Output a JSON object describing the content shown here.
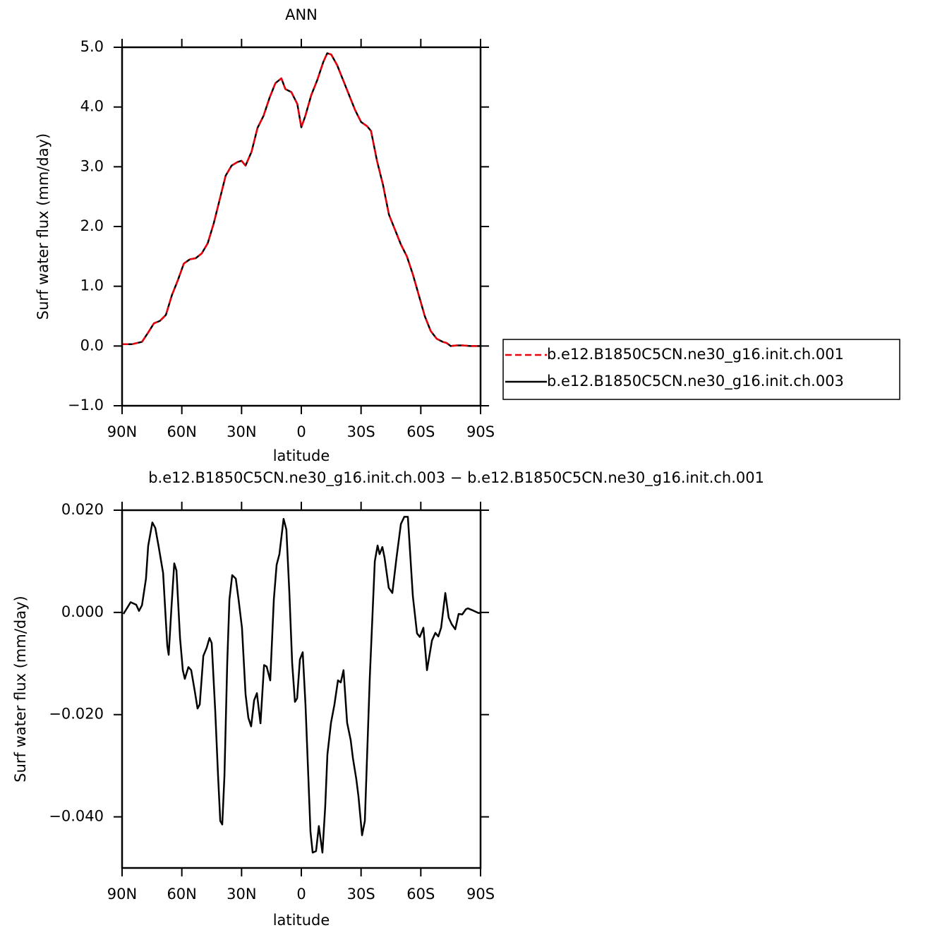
{
  "chart_data": [
    {
      "type": "line",
      "title": "ANN",
      "xlabel": "latitude",
      "ylabel": "Surf water flux (mm/day)",
      "xlim": [
        90,
        -90
      ],
      "ylim": [
        -1.0,
        5.0
      ],
      "xticks": [
        {
          "value": 90,
          "label": "90N"
        },
        {
          "value": 60,
          "label": "60N"
        },
        {
          "value": 30,
          "label": "30N"
        },
        0,
        {
          "value": -30,
          "label": "30S"
        },
        {
          "value": -60,
          "label": "60S"
        },
        {
          "value": -90,
          "label": "90S"
        }
      ],
      "yticks": [
        {
          "value": -1.0,
          "label": "−1.0"
        },
        {
          "value": 0.0,
          "label": "0.0"
        },
        {
          "value": 1.0,
          "label": "1.0"
        },
        {
          "value": 2.0,
          "label": "2.0"
        },
        {
          "value": 3.0,
          "label": "3.0"
        },
        {
          "value": 4.0,
          "label": "4.0"
        },
        {
          "value": 5.0,
          "label": "5.0"
        }
      ],
      "legend": "right",
      "x": [
        90,
        85,
        80,
        77,
        74,
        71,
        68,
        65,
        62,
        59,
        56,
        53,
        50,
        47,
        44,
        41,
        38,
        35,
        32,
        30,
        28,
        25,
        22,
        19,
        16,
        13,
        10,
        8,
        5,
        2,
        0,
        -2,
        -5,
        -8,
        -11,
        -13,
        -15,
        -18,
        -21,
        -24,
        -27,
        -30,
        -33,
        -35,
        -38,
        -41,
        -44,
        -47,
        -50,
        -53,
        -56,
        -59,
        -62,
        -65,
        -68,
        -71,
        -73,
        -75,
        -78,
        -81,
        -85,
        -90
      ],
      "series": [
        {
          "name": "b.e12.B1850C5CN.ne30_g16.init.ch.001",
          "color": "#e8000b",
          "dash": "dashed",
          "values": [
            0.03,
            0.03,
            0.07,
            0.22,
            0.38,
            0.42,
            0.52,
            0.85,
            1.1,
            1.38,
            1.45,
            1.47,
            1.55,
            1.72,
            2.05,
            2.45,
            2.85,
            3.02,
            3.08,
            3.1,
            3.02,
            3.25,
            3.65,
            3.85,
            4.15,
            4.4,
            4.48,
            4.3,
            4.25,
            4.05,
            3.66,
            3.85,
            4.2,
            4.45,
            4.75,
            4.9,
            4.88,
            4.7,
            4.45,
            4.2,
            3.95,
            3.75,
            3.68,
            3.6,
            3.1,
            2.7,
            2.2,
            1.95,
            1.7,
            1.5,
            1.2,
            0.85,
            0.5,
            0.25,
            0.12,
            0.07,
            0.05,
            0.0,
            0.01,
            0.01,
            0.0,
            0.0
          ]
        },
        {
          "name": "b.e12.B1850C5CN.ne30_g16.init.ch.003",
          "color": "#000000",
          "dash": "solid",
          "values": [
            0.03,
            0.03,
            0.07,
            0.22,
            0.38,
            0.42,
            0.52,
            0.85,
            1.1,
            1.38,
            1.45,
            1.47,
            1.55,
            1.72,
            2.05,
            2.45,
            2.85,
            3.02,
            3.08,
            3.1,
            3.02,
            3.25,
            3.65,
            3.85,
            4.15,
            4.4,
            4.48,
            4.3,
            4.25,
            4.05,
            3.66,
            3.85,
            4.2,
            4.45,
            4.75,
            4.9,
            4.88,
            4.7,
            4.45,
            4.2,
            3.95,
            3.75,
            3.68,
            3.6,
            3.1,
            2.7,
            2.2,
            1.95,
            1.7,
            1.5,
            1.2,
            0.85,
            0.5,
            0.25,
            0.12,
            0.07,
            0.05,
            0.0,
            0.01,
            0.01,
            0.0,
            0.0
          ]
        }
      ]
    },
    {
      "type": "line",
      "title": "b.e12.B1850C5CN.ne30_g16.init.ch.003 − b.e12.B1850C5CN.ne30_g16.init.ch.001",
      "xlabel": "latitude",
      "ylabel": "Surf water flux (mm/day)",
      "xlim": [
        90,
        -90
      ],
      "ylim": [
        -0.05,
        0.02
      ],
      "xticks": [
        {
          "value": 90,
          "label": "90N"
        },
        {
          "value": 60,
          "label": "60N"
        },
        {
          "value": 30,
          "label": "30N"
        },
        0,
        {
          "value": -30,
          "label": "30S"
        },
        {
          "value": -60,
          "label": "60S"
        },
        {
          "value": -90,
          "label": "90S"
        }
      ],
      "yticks": [
        {
          "value": -0.04,
          "label": "−0.040"
        },
        {
          "value": -0.02,
          "label": "−0.020"
        },
        {
          "value": 0.0,
          "label": "0.000"
        },
        {
          "value": 0.02,
          "label": "0.020"
        }
      ],
      "x": [
        89.3,
        85.7,
        82.9,
        81.5,
        80,
        78,
        76.9,
        74.8,
        73.3,
        71.6,
        69.4,
        67.3,
        66.6,
        65.2,
        63.8,
        62.7,
        60.9,
        59.5,
        58.5,
        56.7,
        55.3,
        53.5,
        52.1,
        51,
        49.2,
        47.5,
        46.1,
        45,
        43.2,
        41.8,
        40.7,
        39.7,
        38.6,
        37.2,
        36.1,
        34.7,
        32.9,
        31.5,
        29.8,
        28,
        26.6,
        25.2,
        23.7,
        22.3,
        20.5,
        18.7,
        17.4,
        15.6,
        13.8,
        12.4,
        11,
        8.9,
        7.5,
        6,
        4.6,
        3.2,
        2.1,
        0.7,
        -0.7,
        -2.1,
        -3.5,
        -4.6,
        -5.7,
        -7.4,
        -8.8,
        -10.6,
        -12,
        -13.1,
        -14.9,
        -16.6,
        -18.4,
        -19.8,
        -21.2,
        -23,
        -24.8,
        -25.9,
        -27.6,
        -28.7,
        -30.5,
        -31.9,
        -34.4,
        -36.9,
        -38.3,
        -39.3,
        -40.7,
        -41.8,
        -43.9,
        -45.7,
        -47.8,
        -50,
        -51.7,
        -53.5,
        -56,
        -58.1,
        -59.5,
        -61.3,
        -63.1,
        -65.6,
        -67.3,
        -68.8,
        -70.2,
        -72.3,
        -74,
        -75.5,
        -77.3,
        -79,
        -80.8,
        -82.6,
        -83.6,
        -86.1,
        -88.9,
        -90
      ],
      "series": [
        {
          "color": "#000000",
          "dash": "solid",
          "values": [
            -0.0003,
            0.002,
            0.0015,
            0.0003,
            0.0014,
            0.0066,
            0.013,
            0.0176,
            0.0165,
            0.0128,
            0.0077,
            -0.0065,
            -0.0083,
            0.001,
            0.0096,
            0.0082,
            -0.005,
            -0.0113,
            -0.013,
            -0.0107,
            -0.0113,
            -0.0154,
            -0.0188,
            -0.018,
            -0.0085,
            -0.0069,
            -0.005,
            -0.006,
            -0.0195,
            -0.032,
            -0.0408,
            -0.0415,
            -0.032,
            -0.0099,
            0.0025,
            0.0073,
            0.0066,
            0.0025,
            -0.003,
            -0.016,
            -0.0206,
            -0.0223,
            -0.0172,
            -0.0158,
            -0.0217,
            -0.0103,
            -0.0106,
            -0.0133,
            0.0025,
            0.0093,
            0.0114,
            0.0183,
            0.0162,
            0.0038,
            -0.0099,
            -0.0175,
            -0.0168,
            -0.0092,
            -0.0078,
            -0.0181,
            -0.032,
            -0.0429,
            -0.047,
            -0.0467,
            -0.0418,
            -0.047,
            -0.038,
            -0.0278,
            -0.0216,
            -0.0181,
            -0.0133,
            -0.0137,
            -0.0113,
            -0.0216,
            -0.025,
            -0.0285,
            -0.0326,
            -0.036,
            -0.0436,
            -0.0408,
            -0.0126,
            0.01,
            0.0131,
            0.0114,
            0.0128,
            0.0107,
            0.0048,
            0.0038,
            0.0107,
            0.0173,
            0.0187,
            0.0187,
            0.0032,
            -0.0041,
            -0.0048,
            -0.003,
            -0.0113,
            -0.0055,
            -0.004,
            -0.0047,
            -0.003,
            0.0038,
            -0.001,
            -0.0023,
            -0.0033,
            -0.0003,
            -0.0004,
            0.0006,
            0.0008,
            0.0004,
            -0.0001,
            -0.0001
          ]
        }
      ]
    }
  ]
}
